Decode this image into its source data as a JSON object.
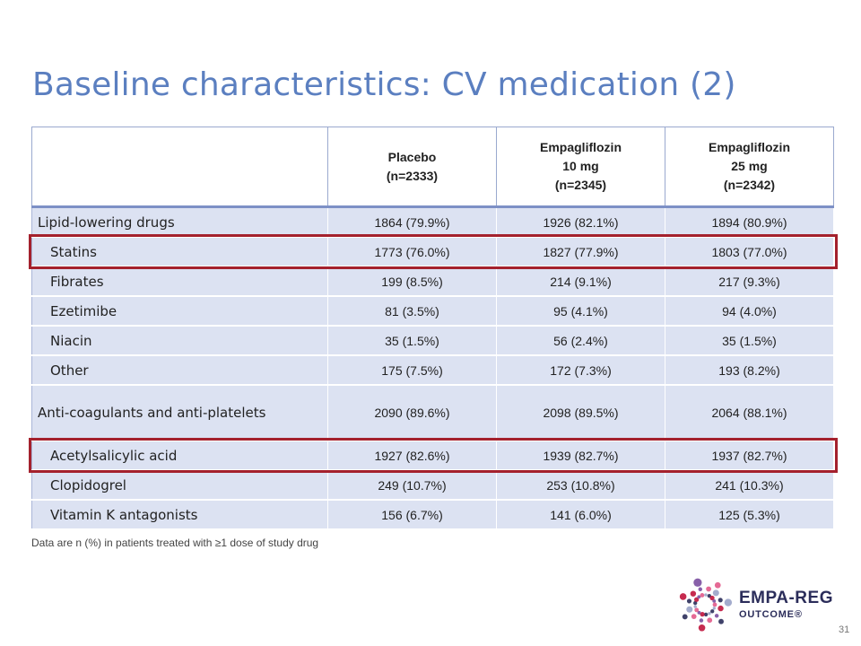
{
  "slide": {
    "title": "Baseline characteristics: CV medication (2)",
    "footnote": "Data are n (%) in patients treated with ≥1 dose of study drug",
    "page_number": "31"
  },
  "table": {
    "headers": [
      [
        ""
      ],
      [
        "Placebo",
        "(n=2333)"
      ],
      [
        "Empagliflozin",
        "10 mg",
        "(n=2345)"
      ],
      [
        "Empagliflozin",
        "25 mg",
        "(n=2342)"
      ]
    ],
    "rows": [
      {
        "label": "Lipid-lowering drugs",
        "sub": false,
        "values": [
          "1864 (79.9%)",
          "1926 (82.1%)",
          "1894 (80.9%)"
        ]
      },
      {
        "label": "Statins",
        "sub": true,
        "highlight": true,
        "values": [
          "1773 (76.0%)",
          "1827 (77.9%)",
          "1803 (77.0%)"
        ]
      },
      {
        "label": "Fibrates",
        "sub": true,
        "values": [
          "199 (8.5%)",
          "214 (9.1%)",
          "217 (9.3%)"
        ]
      },
      {
        "label": "Ezetimibe",
        "sub": true,
        "values": [
          "81 (3.5%)",
          "95 (4.1%)",
          "94 (4.0%)"
        ]
      },
      {
        "label": "Niacin",
        "sub": true,
        "values": [
          "35 (1.5%)",
          "56 (2.4%)",
          "35 (1.5%)"
        ]
      },
      {
        "label": "Other",
        "sub": true,
        "values": [
          "175 (7.5%)",
          "172 (7.3%)",
          "193 (8.2%)"
        ]
      },
      {
        "label": "Anti-coagulants and anti-platelets",
        "sub": false,
        "tall": true,
        "values": [
          "2090 (89.6%)",
          "2098 (89.5%)",
          "2064 (88.1%)"
        ]
      },
      {
        "label": "Acetylsalicylic acid",
        "sub": true,
        "highlight": true,
        "values": [
          "1927 (82.6%)",
          "1939 (82.7%)",
          "1937 (82.7%)"
        ]
      },
      {
        "label": "Clopidogrel",
        "sub": true,
        "values": [
          "249 (10.7%)",
          "253 (10.8%)",
          "241 (10.3%)"
        ]
      },
      {
        "label": "Vitamin K antagonists",
        "sub": true,
        "values": [
          "156 (6.7%)",
          "141 (6.0%)",
          "125 (5.3%)"
        ]
      }
    ]
  },
  "logo": {
    "line1": "EMPA-REG",
    "line2": "OUTCOME®",
    "colors": [
      "#2b2d5a",
      "#c0143c",
      "#7b4fa0",
      "#e25a8a",
      "#9aa3c8"
    ]
  }
}
